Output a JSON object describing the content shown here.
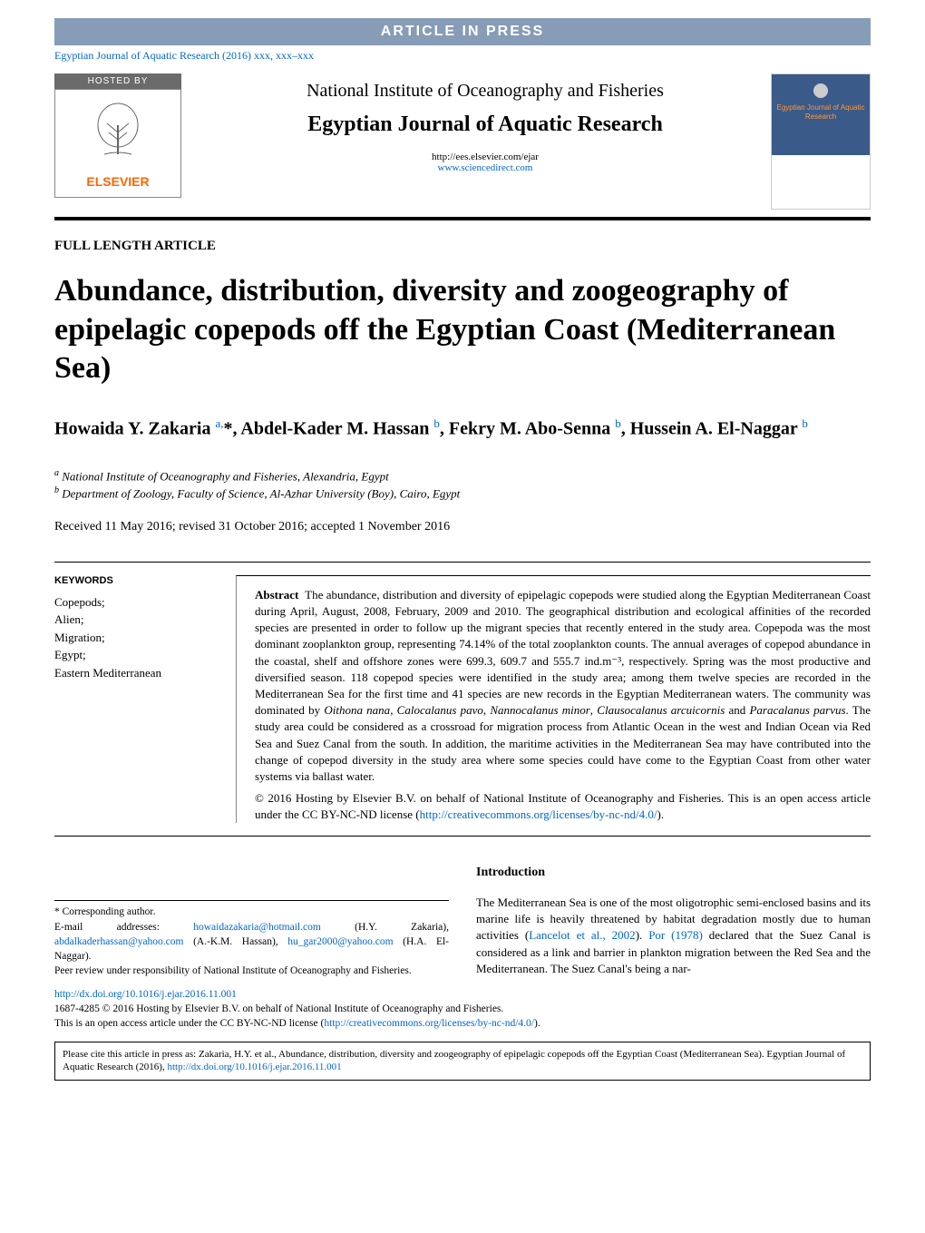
{
  "banner": {
    "article_in_press": "ARTICLE IN PRESS",
    "citation": "Egyptian Journal of Aquatic Research (2016) xxx, xxx–xxx"
  },
  "header": {
    "hosted_by": "HOSTED BY",
    "publisher": "ELSEVIER",
    "institute": "National Institute of Oceanography and Fisheries",
    "journal": "Egyptian Journal of Aquatic Research",
    "url1": "http://ees.elsevier.com/ejar",
    "url2": "www.sciencedirect.com",
    "cover_title": "Egyptian Journal of Aquatic Research"
  },
  "article": {
    "type": "FULL LENGTH ARTICLE",
    "title": "Abundance, distribution, diversity and zoogeography of epipelagic copepods off the Egyptian Coast (Mediterranean Sea)",
    "authors_html": "Howaida Y. Zakaria <sup>a,</sup>*, Abdel-Kader M. Hassan <sup>b</sup>, Fekry M. Abo-Senna <sup>b</sup>, Hussein A. El-Naggar <sup>b</sup>",
    "affiliations": {
      "a": "National Institute of Oceanography and Fisheries, Alexandria, Egypt",
      "b": "Department of Zoology, Faculty of Science, Al-Azhar University (Boy), Cairo, Egypt"
    },
    "dates": "Received 11 May 2016; revised 31 October 2016; accepted 1 November 2016"
  },
  "keywords": {
    "heading": "KEYWORDS",
    "list": "Copepods;\nAlien;\nMigration;\nEgypt;\nEastern Mediterranean"
  },
  "abstract": {
    "label": "Abstract",
    "body": "The abundance, distribution and diversity of epipelagic copepods were studied along the Egyptian Mediterranean Coast during April, August, 2008, February, 2009 and 2010. The geographical distribution and ecological affinities of the recorded species are presented in order to follow up the migrant species that recently entered in the study area. Copepoda was the most dominant zooplankton group, representing 74.14% of the total zooplankton counts. The annual averages of copepod abundance in the coastal, shelf and offshore zones were 699.3, 609.7 and 555.7 ind.m⁻³, respectively. Spring was the most productive and diversified season. 118 copepod species were identified in the study area; among them twelve species are recorded in the Mediterranean Sea for the first time and 41 species are new records in the Egyptian Mediterranean waters. The community was dominated by Oithona nana, Calocalanus pavo, Nannocalanus minor, Clausocalanus arcuicornis and Paracalanus parvus. The study area could be considered as a crossroad for migration process from Atlantic Ocean in the west and Indian Ocean via Red Sea and Suez Canal from the south. In addition, the maritime activities in the Mediterranean Sea may have contributed into the change of copepod diversity in the study area where some species could have come to the Egyptian Coast from other water systems via ballast water.",
    "copyright": "© 2016 Hosting by Elsevier B.V. on behalf of National Institute of Oceanography and Fisheries. This is an open access article under the CC BY-NC-ND license (",
    "cc_url": "http://creativecommons.org/licenses/by-nc-nd/4.0/",
    "copyright_end": ")."
  },
  "introduction": {
    "heading": "Introduction",
    "body": "The Mediterranean Sea is one of the most oligotrophic semi-enclosed basins and its marine life is heavily threatened by habitat degradation mostly due to human activities (Lancelot et al., 2002). Por (1978) declared that the Suez Canal is considered as a link and barrier in plankton migration between the Red Sea and the Mediterranean. The Suez Canal's being a nar-"
  },
  "footnotes": {
    "corresponding": "* Corresponding author.",
    "emails_prefix": "E-mail addresses: ",
    "email1": "howaidazakaria@hotmail.com",
    "email1_name": " (H.Y. Zakaria), ",
    "email2": "abdalkaderhassan@yahoo.com",
    "email2_name": " (A.-K.M. Hassan), ",
    "email3": "hu_gar2000@yahoo.com",
    "email3_name": " (H.A. El-Naggar).",
    "peer_review": "Peer review under responsibility of National Institute of Oceanography and Fisheries."
  },
  "doi": {
    "url": "http://dx.doi.org/10.1016/j.ejar.2016.11.001",
    "issn_line": "1687-4285 © 2016 Hosting by Elsevier B.V. on behalf of National Institute of Oceanography and Fisheries.",
    "license_line": "This is an open access article under the CC BY-NC-ND license (",
    "cc_url": "http://creativecommons.org/licenses/by-nc-nd/4.0/",
    "license_end": ")."
  },
  "cite_box": {
    "text": "Please cite this article in press as: Zakaria, H.Y. et al., Abundance, distribution, diversity and zoogeography of epipelagic copepods off the Egyptian Coast (Mediterranean Sea). Egyptian Journal of Aquatic Research (2016), ",
    "url": "http://dx.doi.org/10.1016/j.ejar.2016.11.001"
  },
  "colors": {
    "banner_bg": "#879cb6",
    "link": "#0066cc",
    "elsevier_orange": "#ff6600",
    "cover_bg": "#3a5a8a",
    "cover_text": "#ff9933"
  }
}
